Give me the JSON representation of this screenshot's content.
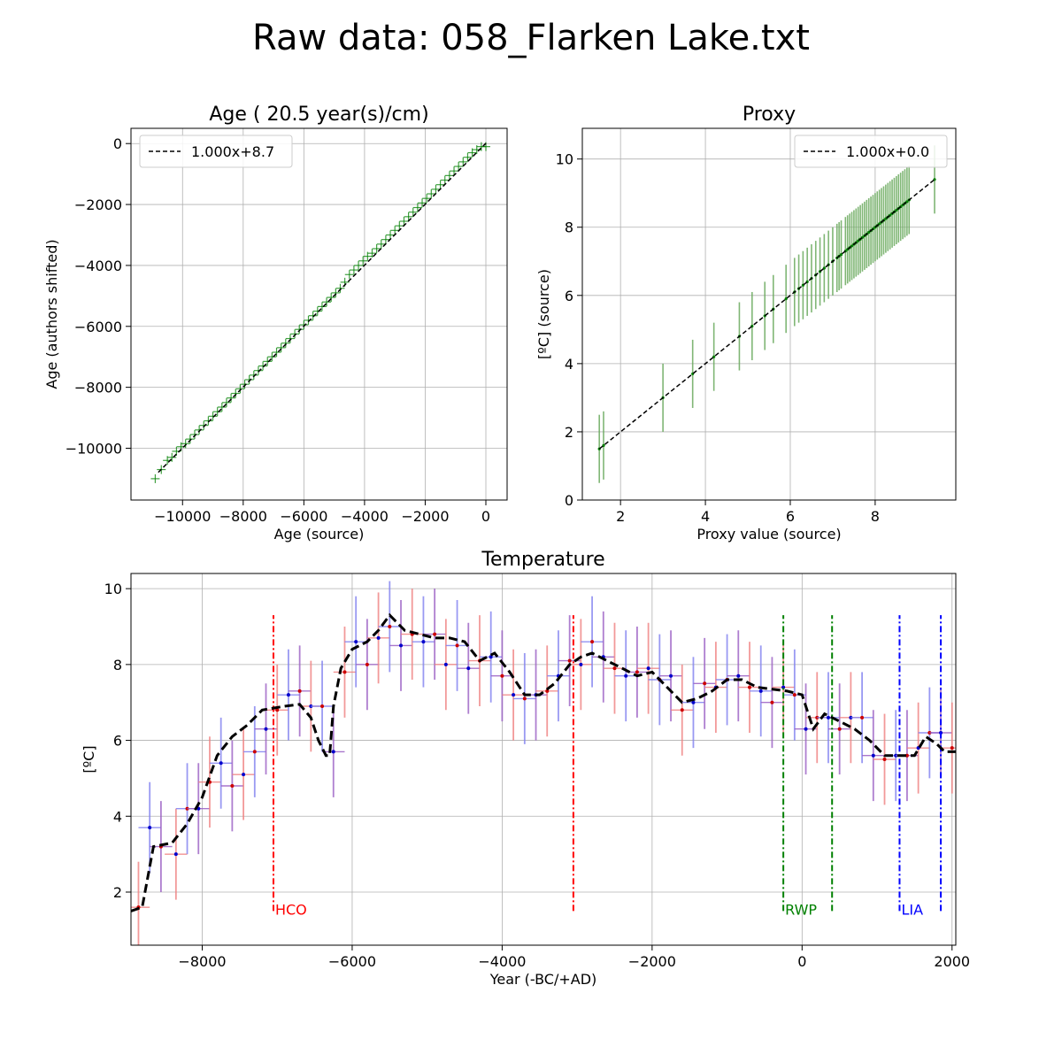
{
  "figure": {
    "title": "Raw data: 058_Flarken Lake.txt"
  },
  "colors": {
    "fit": "#000000",
    "points": "#008000",
    "proxy_err": "#6aaa5e",
    "temp_red": "#f08080",
    "temp_blue": "#8080f0",
    "temp_purple": "#9a5fc4",
    "hco": "#ff0000",
    "rwp": "#008000",
    "lia": "#0000ff",
    "grid": "#b0b0b0"
  },
  "chart_data": [
    {
      "id": "age",
      "type": "scatter",
      "title": "Age ( 20.5 year(s)/cm)",
      "xlabel": "Age (source)",
      "ylabel": "Age (authors shifted)",
      "xlim": [
        -11700,
        700
      ],
      "ylim": [
        -11700,
        500
      ],
      "xticks": [
        -10000,
        -8000,
        -6000,
        -4000,
        -2000,
        0
      ],
      "xtick_labels": [
        "−10000",
        "−8000",
        "−6000",
        "−4000",
        "−2000",
        "0"
      ],
      "yticks": [
        -10000,
        -8000,
        -6000,
        -4000,
        -2000,
        0
      ],
      "ytick_labels": [
        "−10000",
        "−8000",
        "−6000",
        "−4000",
        "−2000",
        "0"
      ],
      "grid": true,
      "legend": {
        "label": "1.000x+8.7",
        "position": "top-left"
      },
      "fit": {
        "slope": 1.0,
        "intercept": 8.7,
        "x_range": [
          -10800,
          0
        ]
      },
      "x": [
        -10900,
        -10700,
        -10500,
        -10350,
        -10200,
        -10050,
        -9900,
        -9750,
        -9600,
        -9450,
        -9300,
        -9150,
        -9000,
        -8850,
        -8700,
        -8550,
        -8400,
        -8250,
        -8100,
        -7950,
        -7800,
        -7650,
        -7500,
        -7350,
        -7200,
        -7050,
        -6900,
        -6750,
        -6600,
        -6450,
        -6300,
        -6150,
        -6000,
        -5850,
        -5700,
        -5550,
        -5400,
        -5250,
        -5100,
        -4950,
        -4800,
        -4650,
        -4500,
        -4350,
        -4200,
        -4050,
        -3900,
        -3750,
        -3600,
        -3450,
        -3300,
        -3150,
        -3000,
        -2850,
        -2700,
        -2550,
        -2400,
        -2250,
        -2100,
        -1950,
        -1800,
        -1650,
        -1500,
        -1350,
        -1200,
        -1050,
        -900,
        -750,
        -600,
        -450,
        -300,
        -150,
        0
      ],
      "y": [
        -11000,
        -10700,
        -10400,
        -10300,
        -10100,
        -9950,
        -9850,
        -9700,
        -9550,
        -9400,
        -9250,
        -9100,
        -8950,
        -8800,
        -8650,
        -8500,
        -8350,
        -8200,
        -8050,
        -7900,
        -7750,
        -7600,
        -7450,
        -7300,
        -7150,
        -7000,
        -6850,
        -6700,
        -6550,
        -6400,
        -6250,
        -6100,
        -5950,
        -5800,
        -5650,
        -5500,
        -5350,
        -5200,
        -5050,
        -4900,
        -4750,
        -4550,
        -4300,
        -4150,
        -4000,
        -3850,
        -3700,
        -3600,
        -3450,
        -3300,
        -3150,
        -3000,
        -2850,
        -2700,
        -2550,
        -2400,
        -2250,
        -2100,
        -1950,
        -1800,
        -1650,
        -1500,
        -1350,
        -1200,
        -1050,
        -900,
        -750,
        -600,
        -450,
        -300,
        -200,
        -100,
        -100
      ]
    },
    {
      "id": "proxy",
      "type": "scatter",
      "title": "Proxy",
      "xlabel": "Proxy value (source)",
      "ylabel": "[ºC] (source)",
      "xlim": [
        1.1,
        9.9
      ],
      "ylim": [
        0,
        10.9
      ],
      "xticks": [
        2,
        4,
        6,
        8
      ],
      "xtick_labels": [
        "2",
        "4",
        "6",
        "8"
      ],
      "yticks": [
        0,
        2,
        4,
        6,
        8,
        10
      ],
      "ytick_labels": [
        "0",
        "2",
        "4",
        "6",
        "8",
        "10"
      ],
      "grid": true,
      "legend": {
        "label": "1.000x+0.0",
        "position": "top-right"
      },
      "fit": {
        "slope": 1.0,
        "intercept": 0.0,
        "x_range": [
          1.5,
          9.4
        ]
      },
      "error": 1.0,
      "x": [
        1.5,
        1.6,
        3.0,
        3.7,
        4.2,
        4.8,
        5.1,
        5.4,
        5.6,
        5.9,
        6.1,
        6.2,
        6.3,
        6.4,
        6.5,
        6.6,
        6.7,
        6.8,
        6.9,
        7.0,
        7.1,
        7.15,
        7.2,
        7.3,
        7.35,
        7.4,
        7.45,
        7.5,
        7.55,
        7.6,
        7.65,
        7.7,
        7.75,
        7.8,
        7.85,
        7.9,
        7.95,
        8.0,
        8.05,
        8.1,
        8.15,
        8.2,
        8.25,
        8.3,
        8.35,
        8.4,
        8.45,
        8.5,
        8.55,
        8.6,
        8.65,
        8.7,
        8.75,
        8.8,
        9.4
      ]
    },
    {
      "id": "temperature",
      "type": "line",
      "title": "Temperature",
      "xlabel": "Year (-BC/+AD)",
      "ylabel": "[ºC]",
      "xlim": [
        -8950,
        2050
      ],
      "ylim": [
        0.6,
        10.4
      ],
      "xticks": [
        -8000,
        -6000,
        -4000,
        -2000,
        0,
        2000
      ],
      "xtick_labels": [
        "−8000",
        "−6000",
        "−4000",
        "−2000",
        "0",
        "2000"
      ],
      "yticks": [
        2,
        4,
        6,
        8,
        10
      ],
      "ytick_labels": [
        "2",
        "4",
        "6",
        "8",
        "10"
      ],
      "grid": true,
      "smooth": {
        "x": [
          -8950,
          -8800,
          -8650,
          -8400,
          -8200,
          -8000,
          -7800,
          -7600,
          -7400,
          -7200,
          -7050,
          -6900,
          -6700,
          -6550,
          -6450,
          -6350,
          -6300,
          -6250,
          -6150,
          -6000,
          -5800,
          -5650,
          -5500,
          -5300,
          -5100,
          -4900,
          -4700,
          -4500,
          -4300,
          -4100,
          -3900,
          -3700,
          -3500,
          -3300,
          -3100,
          -2950,
          -2800,
          -2600,
          -2400,
          -2200,
          -2000,
          -1800,
          -1600,
          -1400,
          -1200,
          -1000,
          -800,
          -600,
          -400,
          -200,
          0,
          150,
          300,
          500,
          700,
          900,
          1100,
          1300,
          1500,
          1650,
          1800,
          1900,
          2050
        ],
        "y": [
          1.5,
          1.6,
          3.2,
          3.3,
          3.8,
          4.5,
          5.6,
          6.1,
          6.4,
          6.8,
          6.85,
          6.9,
          6.95,
          6.6,
          6.0,
          5.6,
          5.6,
          6.9,
          7.9,
          8.4,
          8.6,
          8.9,
          9.3,
          8.9,
          8.8,
          8.7,
          8.7,
          8.6,
          8.1,
          8.3,
          7.8,
          7.2,
          7.2,
          7.5,
          8.0,
          8.2,
          8.3,
          8.1,
          7.9,
          7.7,
          7.8,
          7.4,
          7.0,
          7.1,
          7.3,
          7.6,
          7.6,
          7.4,
          7.35,
          7.3,
          7.2,
          6.3,
          6.7,
          6.5,
          6.3,
          6.0,
          5.6,
          5.6,
          5.6,
          6.1,
          5.9,
          5.7,
          5.7
        ]
      },
      "points": {
        "x": [
          -8850,
          -8700,
          -8550,
          -8350,
          -8200,
          -8050,
          -7900,
          -7750,
          -7600,
          -7450,
          -7300,
          -7150,
          -7000,
          -6850,
          -6700,
          -6550,
          -6400,
          -6250,
          -6100,
          -5950,
          -5800,
          -5650,
          -5500,
          -5350,
          -5200,
          -5050,
          -4900,
          -4750,
          -4600,
          -4450,
          -4300,
          -4150,
          -4000,
          -3850,
          -3700,
          -3550,
          -3400,
          -3250,
          -3100,
          -2950,
          -2800,
          -2650,
          -2500,
          -2350,
          -2200,
          -2050,
          -1900,
          -1750,
          -1600,
          -1450,
          -1300,
          -1150,
          -1000,
          -850,
          -700,
          -550,
          -400,
          -250,
          -100,
          50,
          200,
          350,
          500,
          650,
          800,
          950,
          1100,
          1250,
          1400,
          1550,
          1700,
          1850,
          2000
        ],
        "y": [
          1.6,
          3.7,
          3.2,
          3.0,
          4.2,
          4.2,
          4.9,
          5.4,
          4.8,
          5.1,
          5.7,
          6.3,
          6.8,
          7.2,
          7.3,
          6.9,
          6.9,
          5.7,
          7.8,
          8.6,
          8.0,
          8.7,
          9.0,
          8.5,
          8.8,
          8.6,
          8.8,
          8.0,
          8.5,
          7.9,
          8.1,
          8.2,
          7.7,
          7.2,
          7.1,
          7.2,
          7.3,
          7.7,
          8.1,
          8.0,
          8.6,
          8.2,
          7.9,
          7.7,
          7.8,
          7.9,
          7.6,
          7.7,
          6.8,
          7.0,
          7.5,
          7.4,
          7.6,
          7.7,
          7.4,
          7.3,
          7.0,
          7.4,
          7.2,
          6.3,
          6.6,
          6.6,
          6.3,
          6.6,
          6.6,
          5.6,
          5.5,
          5.6,
          5.6,
          5.8,
          6.2,
          6.2,
          5.8
        ],
        "err": 1.2,
        "xerr": 150
      },
      "events": [
        {
          "label": "HCO",
          "x": [
            -7050,
            -3050
          ],
          "color": "#ff0000"
        },
        {
          "label": "RWP",
          "x": [
            -250,
            400
          ],
          "color": "#008000"
        },
        {
          "label": "LIA",
          "x": [
            1300,
            1850
          ],
          "color": "#0000ff"
        }
      ],
      "event_ylim": [
        1.5,
        9.3
      ]
    }
  ]
}
